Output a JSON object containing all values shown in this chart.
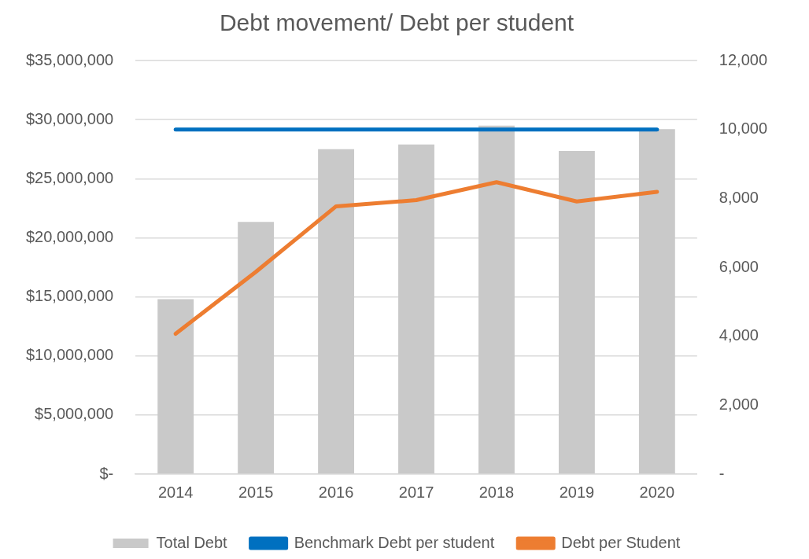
{
  "chart_data": {
    "type": "bar",
    "title": "Debt movement/ Debt per student",
    "categories": [
      "2014",
      "2015",
      "2016",
      "2017",
      "2018",
      "2019",
      "2020"
    ],
    "series": [
      {
        "name": "Total Debt",
        "color": "#c9c9c9",
        "values": [
          14800000,
          21350000,
          27500000,
          27900000,
          29500000,
          27350000,
          29200000
        ]
      },
      {
        "name": "Benchmark Debt per student",
        "type": "line",
        "axis": "y2",
        "color": "#0070c0",
        "values": [
          10000,
          10000,
          10000,
          10000,
          10000,
          10000,
          10000
        ]
      },
      {
        "name": "Debt per Student",
        "type": "line",
        "axis": "y2",
        "color": "#ed7d31",
        "values": [
          4070,
          5870,
          7770,
          7950,
          8470,
          7910,
          8190
        ]
      }
    ],
    "ylim": [
      0,
      35000000
    ],
    "yticks": [
      {
        "value": 0,
        "label": "$-"
      },
      {
        "value": 5000000,
        "label": "$5,000,000"
      },
      {
        "value": 10000000,
        "label": "$10,000,000"
      },
      {
        "value": 15000000,
        "label": "$15,000,000"
      },
      {
        "value": 20000000,
        "label": "$20,000,000"
      },
      {
        "value": 25000000,
        "label": "$25,000,000"
      },
      {
        "value": 30000000,
        "label": "$30,000,000"
      },
      {
        "value": 35000000,
        "label": "$35,000,000"
      }
    ],
    "y2lim": [
      0,
      12000
    ],
    "y2ticks": [
      {
        "value": 0,
        "label": "-"
      },
      {
        "value": 2000,
        "label": "2,000"
      },
      {
        "value": 4000,
        "label": "4,000"
      },
      {
        "value": 6000,
        "label": "6,000"
      },
      {
        "value": 8000,
        "label": "8,000"
      },
      {
        "value": 10000,
        "label": "10,000"
      },
      {
        "value": 12000,
        "label": "12,000"
      }
    ],
    "grid": "y",
    "legend": "bottom",
    "marker": "none",
    "line_style": "solid"
  }
}
